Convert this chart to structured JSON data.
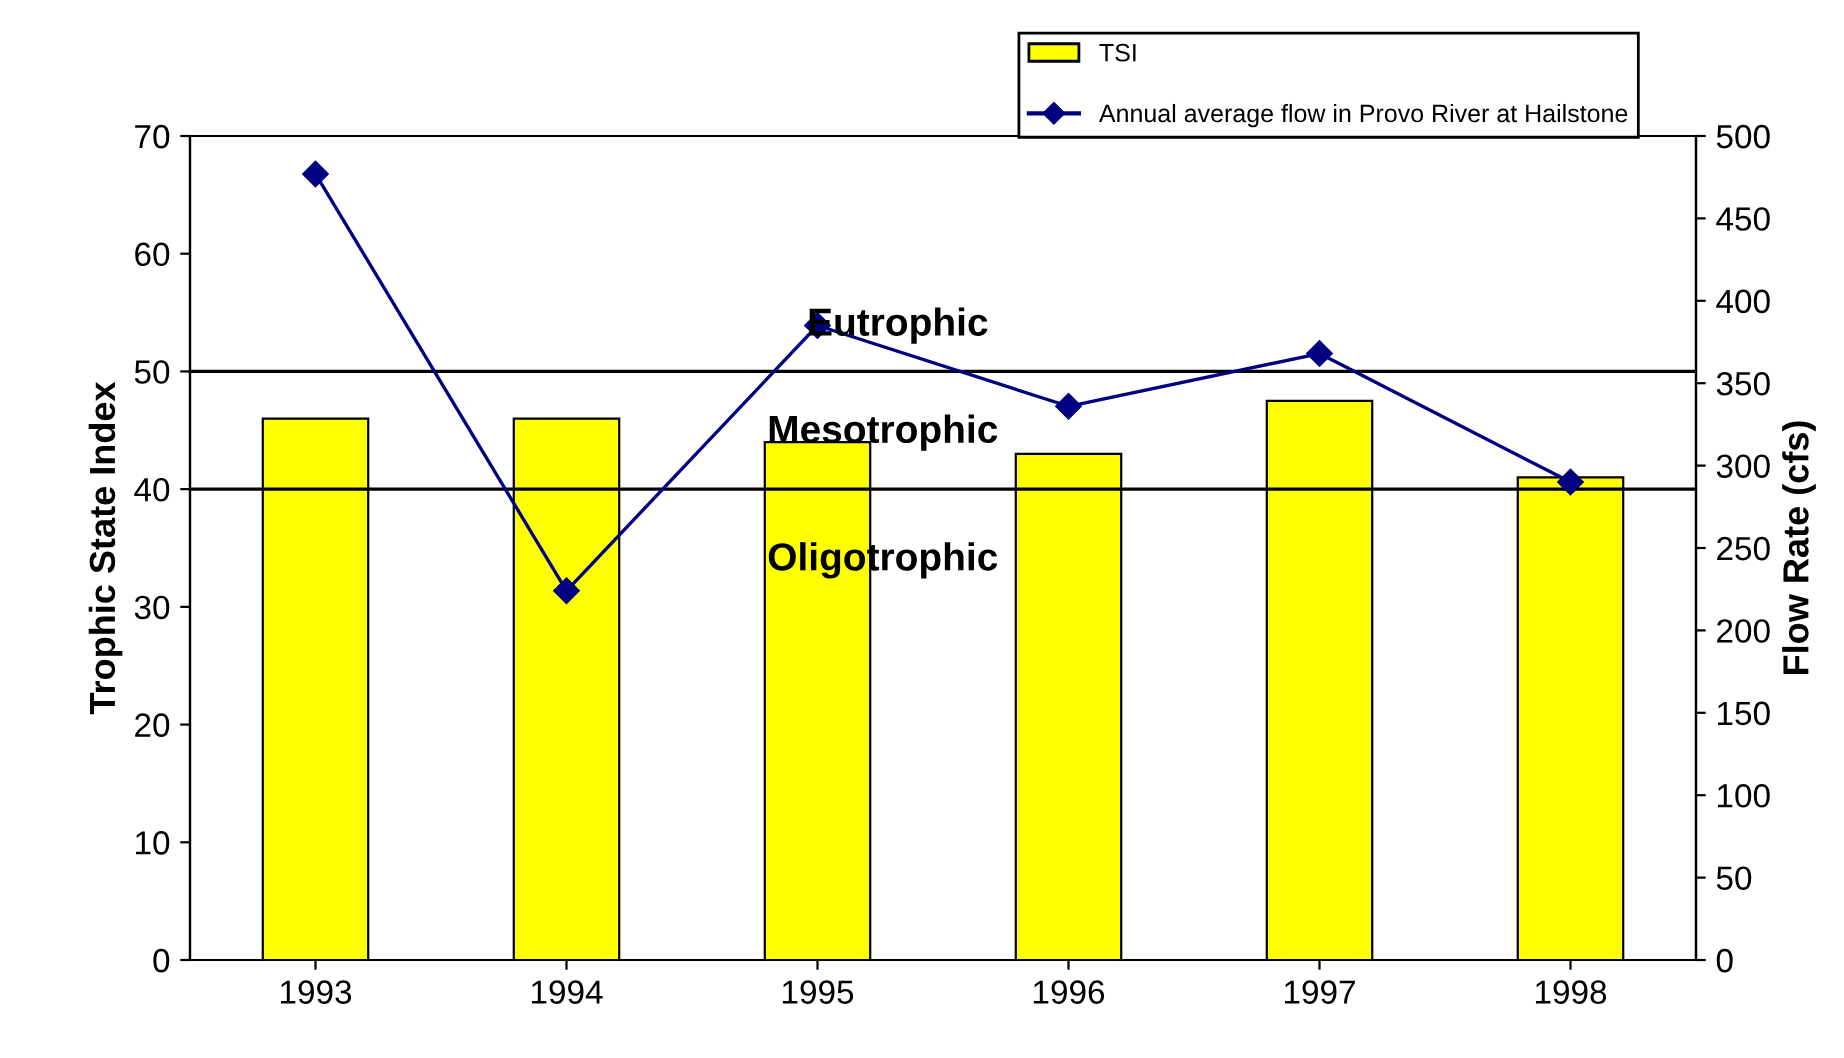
{
  "chart_data": {
    "type": "bar",
    "ylabel": "Trophic State Index",
    "y2label": "Flow Rate (cfs)",
    "categories": [
      "1993",
      "1994",
      "1995",
      "1996",
      "1997",
      "1998"
    ],
    "series": [
      {
        "name": "TSI",
        "color": "#ffff00",
        "values": [
          46,
          46,
          44,
          43,
          47.5,
          41
        ]
      },
      {
        "name": "Annual average flow in Provo River at Hailstone",
        "type": "line",
        "axis": "y2",
        "color": "#000080",
        "marker": "diamond",
        "values": [
          477,
          224,
          385,
          336,
          368,
          290
        ]
      }
    ],
    "ylim": [
      0,
      70
    ],
    "yticks": [
      0,
      10,
      20,
      30,
      40,
      50,
      60,
      70
    ],
    "y2lim": [
      0,
      500
    ],
    "y2ticks": [
      0,
      50,
      100,
      150,
      200,
      250,
      300,
      350,
      400,
      450,
      500
    ],
    "ref_lines": [
      {
        "axis": "y",
        "value": 50,
        "color": "#000000"
      },
      {
        "axis": "y",
        "value": 40,
        "color": "#000000"
      }
    ],
    "annotations": [
      "Eutrophic",
      "Mesotrophic",
      "Oligotrophic"
    ],
    "legend": "top right",
    "grid": false
  }
}
